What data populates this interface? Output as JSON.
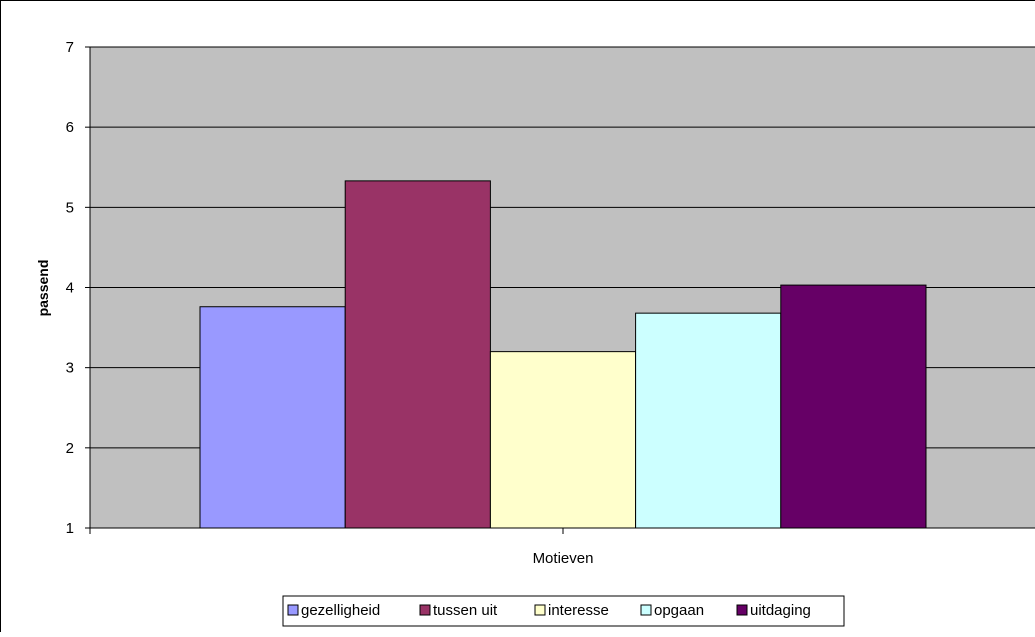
{
  "chart_data": {
    "type": "bar",
    "xlabel": "Motieven",
    "ylabel": "passend",
    "ylim": [
      1,
      7
    ],
    "yticks": [
      1,
      2,
      3,
      4,
      5,
      6,
      7
    ],
    "grid": true,
    "legend_position": "bottom",
    "plot_background": "#c0c0c0",
    "series": [
      {
        "name": "gezelligheid",
        "values": [
          3.76
        ],
        "color": "#9999ff"
      },
      {
        "name": "tussen uit",
        "values": [
          5.33
        ],
        "color": "#993366"
      },
      {
        "name": "interesse",
        "values": [
          3.2
        ],
        "color": "#ffffcc"
      },
      {
        "name": "opgaan",
        "values": [
          3.68
        ],
        "color": "#ccffff"
      },
      {
        "name": "uitdaging",
        "values": [
          4.03
        ],
        "color": "#660066"
      }
    ]
  }
}
